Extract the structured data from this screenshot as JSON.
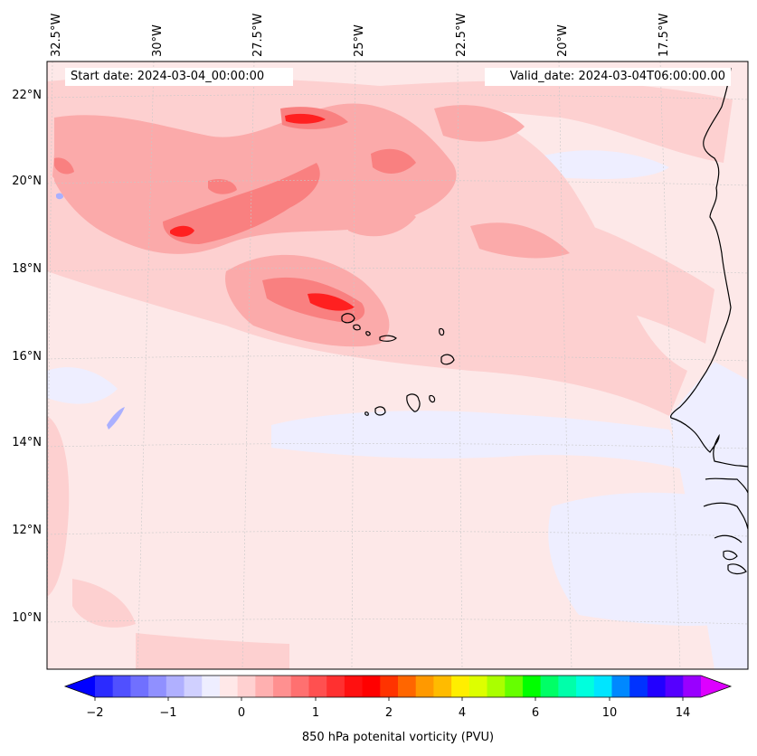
{
  "map": {
    "start_date": "Start date: 2024-03-04_00:00:00",
    "valid_date": "Valid_date: 2024-03-04T06:00:00.00",
    "lon_labels": [
      "32.5°W",
      "30°W",
      "27.5°W",
      "25°W",
      "22.5°W",
      "20°W",
      "17.5°W"
    ],
    "lat_labels": [
      "22°N",
      "20°N",
      "18°N",
      "16°N",
      "14°N",
      "12°N",
      "10°N"
    ],
    "field_colors": {
      "background": "#fde8e8",
      "light_pink": "#fdd0d0",
      "medium_pink": "#fbaaaa",
      "strong_pink": "#f98080",
      "red": "#ff2020",
      "light_blue": "#eeeeff",
      "blue": "#aab0ff",
      "coastline": "#000000"
    }
  },
  "colorbar": {
    "label": "850 hPa potenital vorticity (PVU)",
    "tick_labels": [
      "−2",
      "−1",
      "0",
      "1",
      "2",
      "4",
      "6",
      "10",
      "14"
    ],
    "colors": [
      "#0000ff",
      "#2b2bff",
      "#5050ff",
      "#7070ff",
      "#9090ff",
      "#b0b0ff",
      "#d0d0ff",
      "#eeeeff",
      "#ffe8e8",
      "#ffd0d0",
      "#ffb0b0",
      "#ff9090",
      "#ff7070",
      "#ff5050",
      "#ff3030",
      "#ff1010",
      "#ff0000",
      "#ff3300",
      "#ff6600",
      "#ff9900",
      "#ffbb00",
      "#ffee00",
      "#ddff00",
      "#aaff00",
      "#66ff00",
      "#00ff00",
      "#00ff66",
      "#00ffaa",
      "#00ffdd",
      "#00e5ff",
      "#0088ff",
      "#0033ff",
      "#2200ff",
      "#5500ff",
      "#9900ff",
      "#dd00ff"
    ]
  }
}
